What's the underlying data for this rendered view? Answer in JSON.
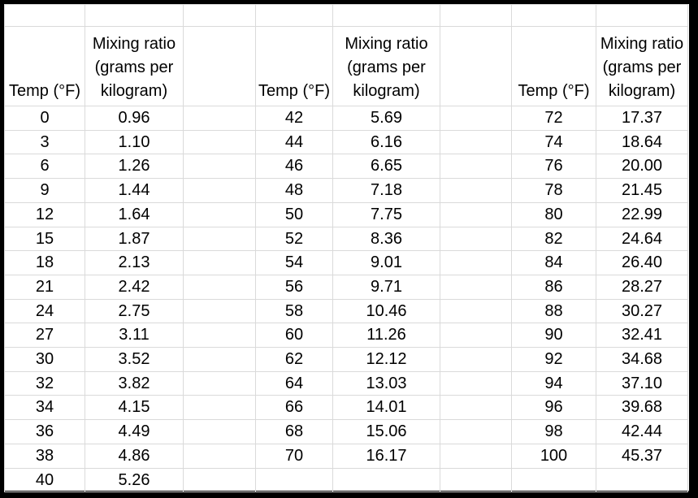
{
  "colors": {
    "frame": "#000000",
    "gridline": "#dadada",
    "text": "#000000",
    "background": "#ffffff"
  },
  "table": {
    "temp_header": "Temp (°F)",
    "ratio_header": "Mixing ratio (grams per kilogram)",
    "groups": [
      {
        "temps": [
          "0",
          "3",
          "6",
          "9",
          "12",
          "15",
          "18",
          "21",
          "24",
          "27",
          "30",
          "32",
          "34",
          "36",
          "38",
          "40"
        ],
        "ratios": [
          "0.96",
          "1.10",
          "1.26",
          "1.44",
          "1.64",
          "1.87",
          "2.13",
          "2.42",
          "2.75",
          "3.11",
          "3.52",
          "3.82",
          "4.15",
          "4.49",
          "4.86",
          "5.26"
        ]
      },
      {
        "temps": [
          "42",
          "44",
          "46",
          "48",
          "50",
          "52",
          "54",
          "56",
          "58",
          "60",
          "62",
          "64",
          "66",
          "68",
          "70"
        ],
        "ratios": [
          "5.69",
          "6.16",
          "6.65",
          "7.18",
          "7.75",
          "8.36",
          "9.01",
          "9.71",
          "10.46",
          "11.26",
          "12.12",
          "13.03",
          "14.01",
          "15.06",
          "16.17"
        ]
      },
      {
        "temps": [
          "72",
          "74",
          "76",
          "78",
          "80",
          "82",
          "84",
          "86",
          "88",
          "90",
          "92",
          "94",
          "96",
          "98",
          "100"
        ],
        "ratios": [
          "17.37",
          "18.64",
          "20.00",
          "21.45",
          "22.99",
          "24.64",
          "26.40",
          "28.27",
          "30.27",
          "32.41",
          "34.68",
          "37.10",
          "39.68",
          "42.44",
          "45.37"
        ]
      }
    ]
  }
}
